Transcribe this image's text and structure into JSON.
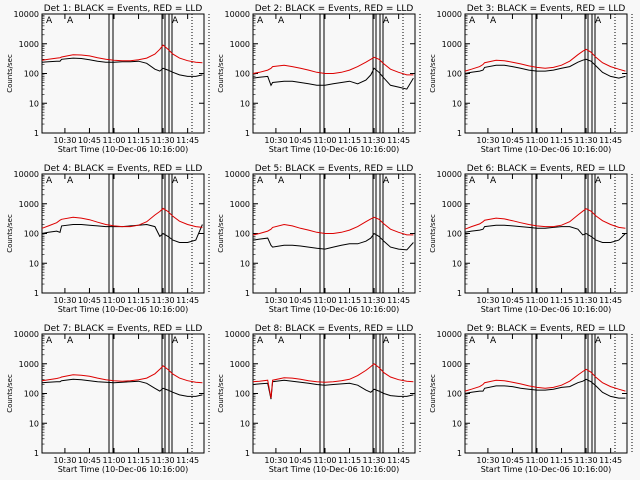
{
  "figure": {
    "background": "#f8f8f8",
    "colors": {
      "events": "#000000",
      "lld": "#dd0000",
      "axes": "#000000"
    }
  },
  "chart_data": [
    {
      "type": "line",
      "title": "Det 1: BLACK = Events, RED = LLD",
      "xlabel": "Start Time (10-Dec-06 10:16:00)",
      "ylabel": "Counts/sec",
      "xlim": [
        "10:16",
        "11:55"
      ],
      "ylim": [
        1,
        10000
      ],
      "yscale": "log",
      "x_ticks": [
        "10:30",
        "10:45",
        "11:00",
        "11:15",
        "11:30",
        "11:45"
      ],
      "y_ticks": [
        "1",
        "10",
        "100",
        "1000",
        "10000"
      ],
      "attenuator_flags": [
        "A",
        "A",
        "A"
      ],
      "x": [
        "10:16",
        "10:20",
        "10:25",
        "10:27",
        "10:28",
        "10:35",
        "10:40",
        "10:45",
        "10:50",
        "10:55",
        "11:00",
        "11:05",
        "11:10",
        "11:15",
        "11:20",
        "11:25",
        "11:28",
        "11:30",
        "11:33",
        "11:36",
        "11:40",
        "11:45",
        "11:50",
        "11:54"
      ],
      "series": [
        {
          "name": "BLACK = Events",
          "color": "#000000",
          "values": [
            240,
            250,
            260,
            260,
            300,
            330,
            320,
            290,
            260,
            240,
            240,
            250,
            250,
            260,
            220,
            140,
            120,
            150,
            130,
            110,
            90,
            80,
            80,
            90
          ]
        },
        {
          "name": "RED = LLD",
          "color": "#dd0000",
          "values": [
            280,
            300,
            330,
            340,
            360,
            430,
            420,
            390,
            340,
            300,
            280,
            270,
            270,
            290,
            330,
            450,
            650,
            900,
            650,
            450,
            330,
            270,
            240,
            230
          ]
        }
      ]
    },
    {
      "type": "line",
      "title": "Det 2: BLACK = Events, RED = LLD",
      "xlabel": "Start Time (10-Dec-06 10:16:00)",
      "ylabel": "Counts/sec",
      "xlim": [
        "10:16",
        "11:55"
      ],
      "ylim": [
        1,
        10000
      ],
      "yscale": "log",
      "x_ticks": [
        "10:30",
        "10:45",
        "11:00",
        "11:15",
        "11:30",
        "11:45"
      ],
      "y_ticks": [
        "1",
        "10",
        "100",
        "1000",
        "10000"
      ],
      "attenuator_flags": [
        "A",
        "A",
        "A"
      ],
      "x": [
        "10:16",
        "10:20",
        "10:25",
        "10:27",
        "10:28",
        "10:35",
        "10:40",
        "10:45",
        "10:50",
        "10:55",
        "11:00",
        "11:05",
        "11:10",
        "11:15",
        "11:20",
        "11:25",
        "11:28",
        "11:30",
        "11:33",
        "11:36",
        "11:40",
        "11:45",
        "11:50",
        "11:54"
      ],
      "series": [
        {
          "name": "BLACK = Events",
          "color": "#000000",
          "values": [
            70,
            75,
            80,
            40,
            50,
            55,
            55,
            50,
            45,
            40,
            40,
            45,
            50,
            55,
            45,
            60,
            90,
            150,
            110,
            70,
            40,
            35,
            30,
            70
          ]
        },
        {
          "name": "RED = LLD",
          "color": "#dd0000",
          "values": [
            100,
            110,
            130,
            150,
            170,
            190,
            170,
            150,
            130,
            110,
            100,
            100,
            110,
            130,
            170,
            240,
            300,
            350,
            300,
            210,
            140,
            110,
            90,
            90
          ]
        }
      ]
    },
    {
      "type": "line",
      "title": "Det 3: BLACK = Events, RED = LLD",
      "xlabel": "Start Time (10-Dec-06 10:16:00)",
      "ylabel": "Counts/sec",
      "xlim": [
        "10:16",
        "11:55"
      ],
      "ylim": [
        1,
        10000
      ],
      "yscale": "log",
      "x_ticks": [
        "10:30",
        "10:45",
        "11:00",
        "11:15",
        "11:30",
        "11:45"
      ],
      "y_ticks": [
        "1",
        "10",
        "100",
        "1000",
        "10000"
      ],
      "attenuator_flags": [
        "A",
        "A",
        "A"
      ],
      "x": [
        "10:16",
        "10:20",
        "10:25",
        "10:27",
        "10:28",
        "10:35",
        "10:40",
        "10:45",
        "10:50",
        "10:55",
        "11:00",
        "11:05",
        "11:10",
        "11:15",
        "11:20",
        "11:25",
        "11:28",
        "11:30",
        "11:33",
        "11:36",
        "11:40",
        "11:45",
        "11:50",
        "11:54"
      ],
      "series": [
        {
          "name": "BLACK = Events",
          "color": "#000000",
          "values": [
            100,
            110,
            120,
            130,
            160,
            190,
            190,
            170,
            150,
            130,
            120,
            120,
            130,
            150,
            170,
            240,
            280,
            300,
            260,
            180,
            110,
            80,
            70,
            80
          ]
        },
        {
          "name": "RED = LLD",
          "color": "#dd0000",
          "values": [
            120,
            140,
            170,
            200,
            230,
            280,
            270,
            240,
            210,
            180,
            160,
            150,
            160,
            190,
            260,
            430,
            560,
            650,
            520,
            350,
            230,
            170,
            140,
            120
          ]
        }
      ]
    },
    {
      "type": "line",
      "title": "Det 4: BLACK = Events, RED = LLD",
      "xlabel": "Start Time (10-Dec-06 10:16:00)",
      "ylabel": "Counts/sec",
      "xlim": [
        "10:16",
        "11:55"
      ],
      "ylim": [
        1,
        10000
      ],
      "yscale": "log",
      "x_ticks": [
        "10:30",
        "10:45",
        "11:00",
        "11:15",
        "11:30",
        "11:45"
      ],
      "y_ticks": [
        "1",
        "10",
        "100",
        "1000",
        "10000"
      ],
      "attenuator_flags": [
        "A",
        "A",
        "A"
      ],
      "x": [
        "10:16",
        "10:20",
        "10:25",
        "10:27",
        "10:28",
        "10:35",
        "10:40",
        "10:45",
        "10:50",
        "10:55",
        "11:00",
        "11:05",
        "11:10",
        "11:15",
        "11:20",
        "11:25",
        "11:28",
        "11:30",
        "11:33",
        "11:36",
        "11:40",
        "11:45",
        "11:50",
        "11:54"
      ],
      "series": [
        {
          "name": "BLACK = Events",
          "color": "#000000",
          "values": [
            100,
            110,
            120,
            110,
            180,
            200,
            200,
            190,
            180,
            170,
            170,
            170,
            180,
            190,
            200,
            170,
            80,
            100,
            80,
            60,
            50,
            50,
            60,
            200
          ]
        },
        {
          "name": "RED = LLD",
          "color": "#dd0000",
          "values": [
            150,
            180,
            230,
            280,
            300,
            350,
            330,
            290,
            240,
            200,
            180,
            170,
            170,
            190,
            250,
            420,
            550,
            700,
            550,
            380,
            260,
            200,
            170,
            160
          ]
        }
      ]
    },
    {
      "type": "line",
      "title": "Det 5: BLACK = Events, RED = LLD",
      "xlabel": "Start Time (10-Dec-06 10:16:00)",
      "ylabel": "Counts/sec",
      "xlim": [
        "10:16",
        "11:55"
      ],
      "ylim": [
        1,
        10000
      ],
      "yscale": "log",
      "x_ticks": [
        "10:30",
        "10:45",
        "11:00",
        "11:15",
        "11:30",
        "11:45"
      ],
      "y_ticks": [
        "1",
        "10",
        "100",
        "1000",
        "10000"
      ],
      "attenuator_flags": [
        "A",
        "A",
        "A"
      ],
      "x": [
        "10:16",
        "10:20",
        "10:25",
        "10:27",
        "10:28",
        "10:35",
        "10:40",
        "10:45",
        "10:50",
        "10:55",
        "11:00",
        "11:05",
        "11:10",
        "11:15",
        "11:20",
        "11:25",
        "11:28",
        "11:30",
        "11:33",
        "11:36",
        "11:40",
        "11:45",
        "11:50",
        "11:54"
      ],
      "series": [
        {
          "name": "BLACK = Events",
          "color": "#000000",
          "values": [
            60,
            65,
            70,
            40,
            35,
            40,
            40,
            38,
            35,
            32,
            30,
            35,
            40,
            45,
            45,
            55,
            70,
            100,
            80,
            55,
            35,
            30,
            28,
            50
          ]
        },
        {
          "name": "RED = LLD",
          "color": "#dd0000",
          "values": [
            90,
            100,
            120,
            140,
            160,
            200,
            180,
            150,
            130,
            110,
            100,
            100,
            110,
            130,
            170,
            250,
            310,
            350,
            300,
            210,
            140,
            110,
            90,
            90
          ]
        }
      ]
    },
    {
      "type": "line",
      "title": "Det 6: BLACK = Events, RED = LLD",
      "xlabel": "Start Time (10-Dec-06 10:16:00)",
      "ylabel": "Counts/sec",
      "xlim": [
        "10:16",
        "11:55"
      ],
      "ylim": [
        1,
        10000
      ],
      "yscale": "log",
      "x_ticks": [
        "10:30",
        "10:45",
        "11:00",
        "11:15",
        "11:30",
        "11:45"
      ],
      "y_ticks": [
        "1",
        "10",
        "100",
        "1000",
        "10000"
      ],
      "attenuator_flags": [
        "A",
        "A",
        "A"
      ],
      "x": [
        "10:16",
        "10:20",
        "10:25",
        "10:27",
        "10:28",
        "10:35",
        "10:40",
        "10:45",
        "10:50",
        "10:55",
        "11:00",
        "11:05",
        "11:10",
        "11:15",
        "11:20",
        "11:25",
        "11:28",
        "11:30",
        "11:33",
        "11:36",
        "11:40",
        "11:45",
        "11:50",
        "11:54"
      ],
      "series": [
        {
          "name": "BLACK = Events",
          "color": "#000000",
          "values": [
            110,
            120,
            130,
            140,
            170,
            190,
            190,
            180,
            170,
            160,
            150,
            150,
            160,
            170,
            170,
            140,
            90,
            100,
            80,
            60,
            50,
            50,
            60,
            100
          ]
        },
        {
          "name": "RED = LLD",
          "color": "#dd0000",
          "values": [
            140,
            170,
            210,
            250,
            280,
            330,
            310,
            270,
            230,
            200,
            180,
            170,
            170,
            190,
            250,
            420,
            560,
            680,
            560,
            390,
            270,
            200,
            160,
            150
          ]
        }
      ]
    },
    {
      "type": "line",
      "title": "Det 7: BLACK = Events, RED = LLD",
      "xlabel": "Start Time (10-Dec-06 10:16:00)",
      "ylabel": "Counts/sec",
      "xlim": [
        "10:16",
        "11:55"
      ],
      "ylim": [
        1,
        10000
      ],
      "yscale": "log",
      "x_ticks": [
        "10:30",
        "10:45",
        "11:00",
        "11:15",
        "11:30",
        "11:45"
      ],
      "y_ticks": [
        "1",
        "10",
        "100",
        "1000",
        "10000"
      ],
      "attenuator_flags": [
        "A",
        "A",
        "A"
      ],
      "x": [
        "10:16",
        "10:20",
        "10:25",
        "10:27",
        "10:28",
        "10:35",
        "10:40",
        "10:45",
        "10:50",
        "10:55",
        "11:00",
        "11:05",
        "11:10",
        "11:15",
        "11:20",
        "11:25",
        "11:28",
        "11:30",
        "11:33",
        "11:36",
        "11:40",
        "11:45",
        "11:50",
        "11:54"
      ],
      "series": [
        {
          "name": "BLACK = Events",
          "color": "#000000",
          "values": [
            230,
            240,
            250,
            250,
            270,
            300,
            290,
            270,
            250,
            240,
            230,
            240,
            250,
            260,
            220,
            150,
            120,
            150,
            130,
            110,
            90,
            80,
            80,
            90
          ]
        },
        {
          "name": "RED = LLD",
          "color": "#dd0000",
          "values": [
            270,
            290,
            320,
            340,
            360,
            430,
            410,
            380,
            330,
            290,
            270,
            260,
            270,
            290,
            330,
            460,
            650,
            850,
            640,
            450,
            330,
            270,
            240,
            230
          ]
        }
      ]
    },
    {
      "type": "line",
      "title": "Det 8: BLACK = Events, RED = LLD",
      "xlabel": "Start Time (10-Dec-06 10:16:00)",
      "ylabel": "Counts/sec",
      "xlim": [
        "10:16",
        "11:55"
      ],
      "ylim": [
        1,
        10000
      ],
      "yscale": "log",
      "x_ticks": [
        "10:30",
        "10:45",
        "11:00",
        "11:15",
        "11:30",
        "11:45"
      ],
      "y_ticks": [
        "1",
        "10",
        "100",
        "1000",
        "10000"
      ],
      "attenuator_flags": [
        "A",
        "A",
        "A"
      ],
      "x": [
        "10:16",
        "10:20",
        "10:25",
        "10:27",
        "10:28",
        "10:35",
        "10:40",
        "10:45",
        "10:50",
        "10:55",
        "11:00",
        "11:05",
        "11:10",
        "11:15",
        "11:20",
        "11:25",
        "11:28",
        "11:30",
        "11:33",
        "11:36",
        "11:40",
        "11:45",
        "11:50",
        "11:54"
      ],
      "series": [
        {
          "name": "BLACK = Events",
          "color": "#000000",
          "values": [
            200,
            210,
            220,
            65,
            250,
            280,
            260,
            240,
            220,
            200,
            190,
            200,
            210,
            220,
            190,
            130,
            110,
            140,
            120,
            100,
            85,
            80,
            80,
            90
          ]
        },
        {
          "name": "RED = LLD",
          "color": "#dd0000",
          "values": [
            250,
            260,
            280,
            70,
            280,
            340,
            330,
            300,
            270,
            250,
            240,
            250,
            270,
            300,
            400,
            600,
            800,
            1000,
            750,
            500,
            360,
            290,
            260,
            250
          ]
        }
      ]
    },
    {
      "type": "line",
      "title": "Det 9: BLACK = Events, RED = LLD",
      "xlabel": "Start Time (10-Dec-06 10:16:00)",
      "ylabel": "Counts/sec",
      "xlim": [
        "10:16",
        "11:55"
      ],
      "ylim": [
        1,
        10000
      ],
      "yscale": "log",
      "x_ticks": [
        "10:30",
        "10:45",
        "11:00",
        "11:15",
        "11:30",
        "11:45"
      ],
      "y_ticks": [
        "1",
        "10",
        "100",
        "1000",
        "10000"
      ],
      "attenuator_flags": [
        "A",
        "A",
        "A"
      ],
      "x": [
        "10:16",
        "10:20",
        "10:25",
        "10:27",
        "10:28",
        "10:35",
        "10:40",
        "10:45",
        "10:50",
        "10:55",
        "11:00",
        "11:05",
        "11:10",
        "11:15",
        "11:20",
        "11:25",
        "11:28",
        "11:30",
        "11:33",
        "11:36",
        "11:40",
        "11:45",
        "11:50",
        "11:54"
      ],
      "series": [
        {
          "name": "BLACK = Events",
          "color": "#000000",
          "values": [
            100,
            110,
            120,
            120,
            150,
            180,
            180,
            170,
            150,
            140,
            130,
            130,
            140,
            160,
            170,
            230,
            260,
            300,
            250,
            180,
            110,
            80,
            70,
            70
          ]
        },
        {
          "name": "RED = LLD",
          "color": "#dd0000",
          "values": [
            120,
            140,
            170,
            200,
            230,
            280,
            270,
            240,
            210,
            180,
            160,
            150,
            160,
            190,
            260,
            420,
            550,
            650,
            520,
            350,
            230,
            170,
            140,
            120
          ]
        }
      ]
    }
  ]
}
